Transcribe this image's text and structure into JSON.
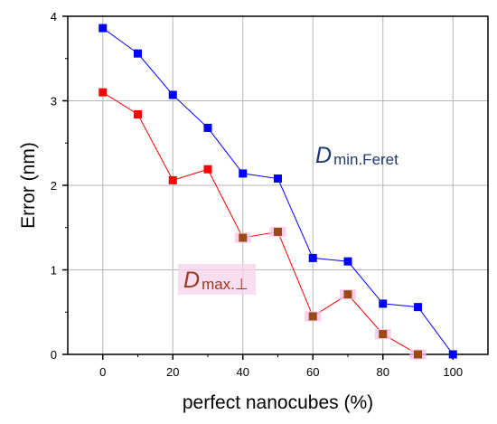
{
  "chart_data": {
    "type": "line",
    "xlabel": "perfect nanocubes (%)",
    "ylabel": "Error (nm)",
    "xlim": [
      -10,
      110
    ],
    "ylim": [
      0,
      4
    ],
    "x_ticks": [
      0,
      20,
      40,
      60,
      80,
      100
    ],
    "y_ticks": [
      0,
      1,
      2,
      3,
      4
    ],
    "grid": true,
    "series": [
      {
        "label_main": "D",
        "label_sub": "min.Feret",
        "color": "#0000ff",
        "label_color": "#1f3a6e",
        "x": [
          0,
          10,
          20,
          30,
          40,
          50,
          60,
          70,
          80,
          90,
          100
        ],
        "y": [
          3.86,
          3.56,
          3.07,
          2.68,
          2.14,
          2.08,
          1.14,
          1.1,
          0.6,
          0.56,
          0.0
        ]
      },
      {
        "label_main": "D",
        "label_sub": "max.⊥",
        "color": "#ff0000",
        "marker_colors": [
          "#ff0000",
          "#ff0000",
          "#ff0000",
          "#ff0000",
          "#9b4a16",
          "#9b4a16",
          "#9b4a16",
          "#9b4a16",
          "#9b4a16",
          "#9b4a16"
        ],
        "label_color": "#9b3a1a",
        "x": [
          0,
          10,
          20,
          30,
          40,
          50,
          60,
          70,
          80,
          90
        ],
        "y": [
          3.1,
          2.84,
          2.06,
          2.19,
          1.38,
          1.45,
          0.45,
          0.71,
          0.24,
          0.0
        ]
      }
    ]
  }
}
